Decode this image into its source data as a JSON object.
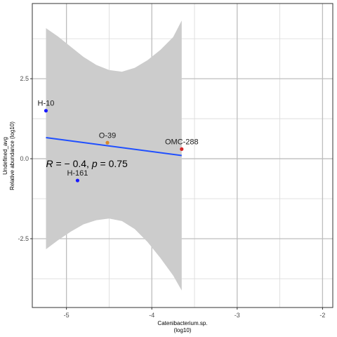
{
  "chart_data": {
    "type": "scatter",
    "xlabel": [
      "Catenibacterium.sp.",
      "(log10)"
    ],
    "ylabel": [
      "Undefined_avg",
      "Relative abundance (log10)"
    ],
    "xlim": [
      -5.4,
      -1.88
    ],
    "ylim": [
      -4.65,
      4.85
    ],
    "x_ticks": [
      -5,
      -4,
      -3,
      -2
    ],
    "y_ticks": [
      -2.5,
      0.0,
      2.5
    ],
    "x_tick_labels": [
      "-5",
      "-4",
      "-3",
      "-2"
    ],
    "y_tick_labels": [
      "-2.5",
      "0.0",
      "2.5"
    ],
    "grid": true,
    "points": [
      {
        "label": "H-10",
        "x": -5.24,
        "y": 1.5,
        "color": "#1a1aff"
      },
      {
        "label": "O-39",
        "x": -4.52,
        "y": 0.5,
        "color": "#d9882b"
      },
      {
        "label": "H-161",
        "x": -4.87,
        "y": -0.68,
        "color": "#1a1aff"
      },
      {
        "label": "OMC-288",
        "x": -3.65,
        "y": 0.3,
        "color": "#d62728"
      }
    ],
    "fit": {
      "x": [
        -5.24,
        -3.65
      ],
      "y": [
        0.66,
        0.1
      ],
      "color": "#1f4fff",
      "band_color": "#cccccc",
      "band": [
        {
          "x": -5.24,
          "lo": -2.83,
          "hi": 4.08
        },
        {
          "x": -5.1,
          "lo": -2.55,
          "hi": 3.82
        },
        {
          "x": -4.95,
          "lo": -2.28,
          "hi": 3.5
        },
        {
          "x": -4.8,
          "lo": -2.05,
          "hi": 3.18
        },
        {
          "x": -4.65,
          "lo": -1.92,
          "hi": 2.93
        },
        {
          "x": -4.5,
          "lo": -1.87,
          "hi": 2.77
        },
        {
          "x": -4.35,
          "lo": -1.95,
          "hi": 2.72
        },
        {
          "x": -4.2,
          "lo": -2.2,
          "hi": 2.84
        },
        {
          "x": -4.05,
          "lo": -2.6,
          "hi": 3.08
        },
        {
          "x": -3.9,
          "lo": -3.1,
          "hi": 3.4
        },
        {
          "x": -3.75,
          "lo": -3.65,
          "hi": 3.8
        },
        {
          "x": -3.65,
          "lo": -4.12,
          "hi": 4.32
        }
      ]
    },
    "annotation": {
      "R": "− 0.4",
      "p": "0.75",
      "x": -5.24,
      "y": -0.15
    }
  }
}
